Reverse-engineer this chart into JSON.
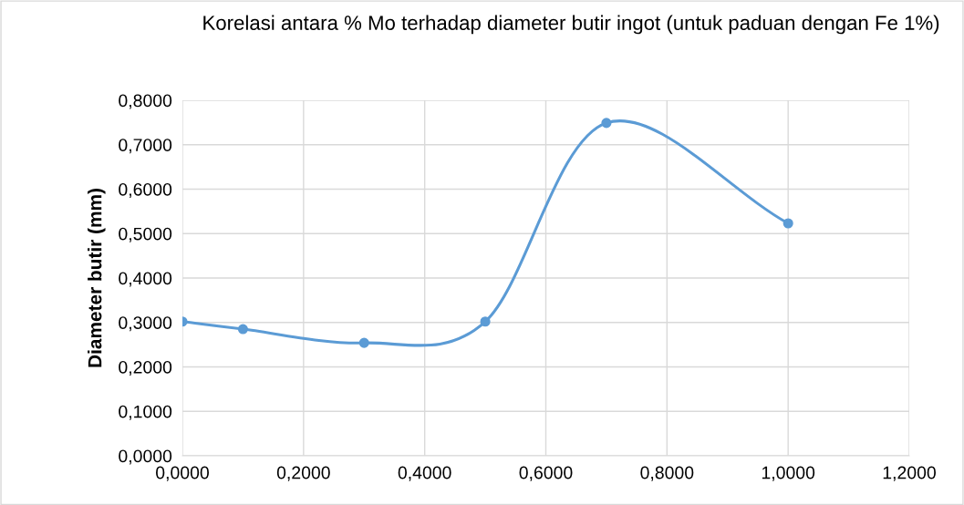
{
  "chart_data": {
    "type": "line",
    "title": "Korelasi antara % Mo terhadap diameter butir ingot (untuk paduan dengan Fe 1%)",
    "ylabel": "Diameter butir (mm)",
    "x": [
      0.0,
      0.1,
      0.3,
      0.5,
      0.7,
      1.0
    ],
    "series": [
      {
        "color": "#5b9bd5",
        "values": [
          0.302,
          0.285,
          0.254,
          0.302,
          0.749,
          0.523
        ]
      }
    ],
    "xlim": [
      0,
      1.2
    ],
    "xticks": [
      {
        "value": 0,
        "label": "0,0000"
      },
      {
        "value": 0.2,
        "label": "0,2000"
      },
      {
        "value": 0.4,
        "label": "0,4000"
      },
      {
        "value": 0.6,
        "label": "0,6000"
      },
      {
        "value": 0.8,
        "label": "0,8000"
      },
      {
        "value": 1.0,
        "label": "1,0000"
      },
      {
        "value": 1.2,
        "label": "1,2000"
      }
    ],
    "ylim": [
      0,
      0.8
    ],
    "yticks": [
      {
        "value": 0,
        "label": "0,0000"
      },
      {
        "value": 0.1,
        "label": "0,1000"
      },
      {
        "value": 0.2,
        "label": "0,2000"
      },
      {
        "value": 0.3,
        "label": "0,3000"
      },
      {
        "value": 0.4,
        "label": "0,4000"
      },
      {
        "value": 0.5,
        "label": "0,5000"
      },
      {
        "value": 0.6,
        "label": "0,6000"
      },
      {
        "value": 0.7,
        "label": "0,7000"
      },
      {
        "value": 0.8,
        "label": "0,8000"
      }
    ],
    "grid": true,
    "marker": "circle",
    "line_style": "solid"
  }
}
